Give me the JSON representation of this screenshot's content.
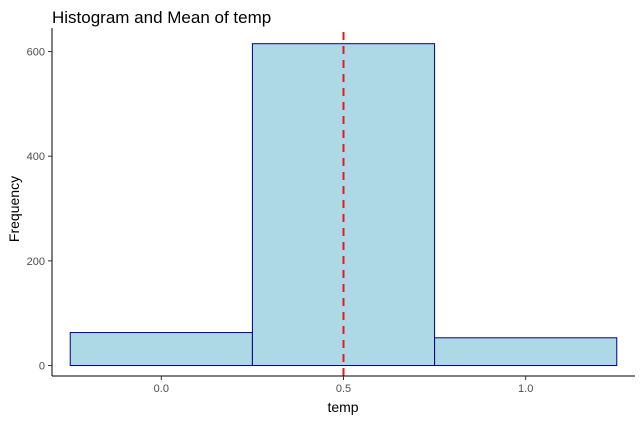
{
  "chart_data": {
    "type": "bar",
    "title": "Histogram and Mean of  temp",
    "xlabel": "temp",
    "ylabel": "Frequency",
    "bins": [
      {
        "x_start": -0.25,
        "x_end": 0.25,
        "count": 63
      },
      {
        "x_start": 0.25,
        "x_end": 0.75,
        "count": 615
      },
      {
        "x_start": 0.75,
        "x_end": 1.25,
        "count": 53
      }
    ],
    "mean": 0.5,
    "xlim": [
      -0.3,
      1.3
    ],
    "ylim": [
      -20,
      645
    ],
    "x_ticks": [
      {
        "value": 0.0,
        "label": "0.0"
      },
      {
        "value": 0.5,
        "label": "0.5"
      },
      {
        "value": 1.0,
        "label": "1.0"
      }
    ],
    "y_ticks": [
      {
        "value": 0,
        "label": "0"
      },
      {
        "value": 200,
        "label": "200"
      },
      {
        "value": 400,
        "label": "400"
      },
      {
        "value": 600,
        "label": "600"
      }
    ],
    "grid": false,
    "colors": {
      "bar_fill": "#add8e6",
      "bar_stroke": "#00008b",
      "mean_line": "#e31a1c",
      "axis": "#000000"
    }
  }
}
